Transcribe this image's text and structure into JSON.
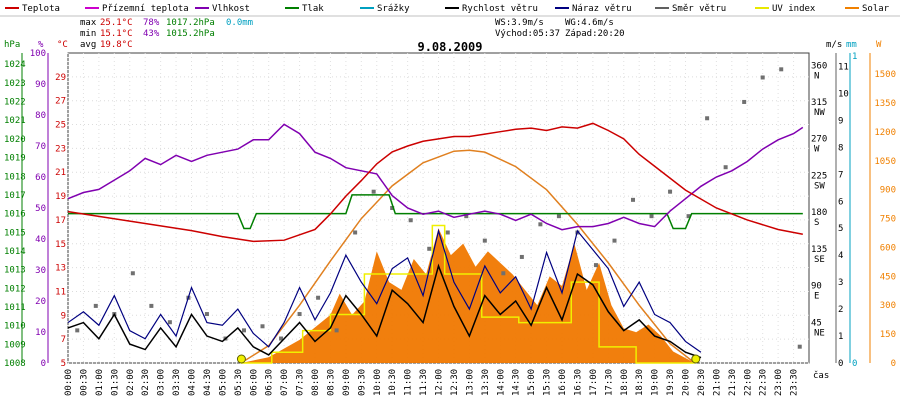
{
  "chart_data": {
    "type": "line",
    "title": "9.08.2009",
    "legend": [
      {
        "label": "Teplota",
        "color": "#cc0000"
      },
      {
        "label": "Přízemní teplota",
        "color": "#cc00cc"
      },
      {
        "label": "Vlhkost",
        "color": "#8000b0"
      },
      {
        "label": "Tlak",
        "color": "#007f00"
      },
      {
        "label": "Srážky",
        "color": "#00a0c0"
      },
      {
        "label": "Rychlost větru",
        "color": "#000000"
      },
      {
        "label": "Náraz větru",
        "color": "#000080"
      },
      {
        "label": "Směr větru",
        "color": "#606060"
      },
      {
        "label": "UV index",
        "color": "#e8e800"
      },
      {
        "label": "Solar",
        "color": "#f08000"
      }
    ],
    "stats": {
      "max": {
        "label": "max",
        "temp": "25.1°C",
        "hum": "78%",
        "press": "1017.2hPa",
        "rain": "0.0mm"
      },
      "min": {
        "label": "min",
        "temp": "15.1°C",
        "hum": "43%",
        "press": "1015.2hPa"
      },
      "avg": {
        "label": "avg",
        "temp": "19.8°C"
      }
    },
    "info": {
      "ws": "WS:3.9m/s",
      "wg": "WG:4.6m/s",
      "sunrise": "Východ:05:37",
      "sunset": "Západ:20:20"
    },
    "axis_units": {
      "hpa": "hPa",
      "pct": "%",
      "degc": "°C",
      "ms": "m/s",
      "mm": "mm",
      "w": "W",
      "xlabel": "čas"
    },
    "hpa_ticks": [
      "1024",
      "1023",
      "1022",
      "1021",
      "1020",
      "1019",
      "1018",
      "1017",
      "1016",
      "1015",
      "1014",
      "1013",
      "1012",
      "1011",
      "1010",
      "1009",
      "1008"
    ],
    "pct_ticks": [
      "100",
      "90",
      "80",
      "70",
      "60",
      "50",
      "40",
      "30",
      "20",
      "10",
      "0"
    ],
    "degc_ticks": [
      "29",
      "27",
      "25",
      "23",
      "21",
      "19",
      "17",
      "15",
      "13",
      "11",
      "9",
      "7",
      "5"
    ],
    "dir_ticks": [
      {
        "deg": "360",
        "dir": "N"
      },
      {
        "deg": "315",
        "dir": "NW"
      },
      {
        "deg": "270",
        "dir": "W"
      },
      {
        "deg": "225",
        "dir": "SW"
      },
      {
        "deg": "180",
        "dir": "S"
      },
      {
        "deg": "135",
        "dir": "SE"
      },
      {
        "deg": "90",
        "dir": "E"
      },
      {
        "deg": "45",
        "dir": "NE"
      }
    ],
    "ms_ticks": [
      "11",
      "10",
      "9",
      "8",
      "7",
      "6",
      "5",
      "4",
      "3",
      "2",
      "1",
      "0"
    ],
    "mm_ticks": [
      "1",
      "0"
    ],
    "w_ticks": [
      "1500",
      "1350",
      "1200",
      "1050",
      "900",
      "750",
      "600",
      "450",
      "300",
      "150",
      "0"
    ],
    "x_ticks": [
      "00:00",
      "00:30",
      "01:00",
      "01:30",
      "02:00",
      "02:30",
      "03:00",
      "03:30",
      "04:00",
      "04:30",
      "05:00",
      "05:30",
      "06:00",
      "06:30",
      "07:00",
      "07:30",
      "08:00",
      "08:30",
      "09:00",
      "09:30",
      "10:00",
      "10:30",
      "11:00",
      "11:30",
      "12:00",
      "12:30",
      "13:00",
      "13:30",
      "14:00",
      "14:30",
      "15:00",
      "15:30",
      "16:00",
      "16:30",
      "17:00",
      "17:30",
      "18:00",
      "18:30",
      "19:00",
      "19:30",
      "20:00",
      "20:30",
      "21:00",
      "21:30",
      "22:00",
      "22:30",
      "23:00",
      "23:30"
    ],
    "series": [
      {
        "name": "Teplota",
        "unit": "°C",
        "ylim": [
          5,
          31
        ],
        "x": [
          0,
          1,
          2,
          3,
          4,
          5,
          6,
          7,
          8,
          8.5,
          9,
          9.5,
          10,
          10.5,
          11,
          11.5,
          12,
          12.5,
          13,
          13.5,
          14,
          14.5,
          15,
          15.5,
          16,
          16.5,
          17,
          17.5,
          18,
          18.5,
          19,
          20,
          21,
          22,
          23,
          23.8
        ],
        "values": [
          17.7,
          17.3,
          16.9,
          16.5,
          16.1,
          15.6,
          15.2,
          15.3,
          16.2,
          17.5,
          19.0,
          20.3,
          21.7,
          22.7,
          23.2,
          23.6,
          23.8,
          24.0,
          24.0,
          24.2,
          24.4,
          24.6,
          24.7,
          24.5,
          24.8,
          24.7,
          25.1,
          24.5,
          23.8,
          22.5,
          21.5,
          19.5,
          18.0,
          17.0,
          16.2,
          15.8
        ]
      },
      {
        "name": "Vlhkost",
        "unit": "%",
        "ylim": [
          0,
          100
        ],
        "x": [
          0,
          0.5,
          1,
          1.5,
          2,
          2.5,
          3,
          3.5,
          4,
          4.5,
          5,
          5.5,
          6,
          6.5,
          7,
          7.5,
          8,
          8.5,
          9,
          9.5,
          10,
          10.5,
          11,
          11.5,
          12,
          12.5,
          13,
          13.5,
          14,
          14.5,
          15,
          15.5,
          16,
          16.5,
          17,
          17.5,
          18,
          18.5,
          19,
          19.5,
          20,
          20.5,
          21,
          21.5,
          22,
          22.5,
          23,
          23.5,
          23.8
        ],
        "values": [
          53,
          55,
          56,
          59,
          62,
          66,
          64,
          67,
          65,
          67,
          68,
          69,
          72,
          72,
          77,
          74,
          68,
          66,
          63,
          62,
          61,
          54,
          50,
          48,
          49,
          47,
          48,
          49,
          48,
          46,
          48,
          45,
          43,
          44,
          44,
          45,
          47,
          45,
          44,
          49,
          53,
          57,
          60,
          62,
          65,
          69,
          72,
          74,
          76
        ]
      },
      {
        "name": "Tlak",
        "unit": "hPa",
        "ylim": [
          1008,
          1024.6
        ],
        "x": [
          0,
          5.5,
          5.7,
          5.9,
          6.1,
          9,
          9.2,
          10.4,
          10.6,
          19.4,
          19.6,
          20.0,
          20.2,
          23.8
        ],
        "values": [
          1016,
          1016,
          1015.2,
          1015.2,
          1016,
          1016,
          1017,
          1017,
          1016,
          1016,
          1015.2,
          1015.2,
          1016,
          1016
        ]
      },
      {
        "name": "Rychlost větru",
        "unit": "m/s",
        "ylim": [
          0,
          11.5
        ],
        "x": [
          0,
          0.5,
          1,
          1.5,
          2,
          2.5,
          3,
          3.5,
          4,
          4.5,
          5,
          5.5,
          6,
          6.5,
          7,
          7.5,
          8,
          8.5,
          9,
          9.5,
          10,
          10.5,
          11,
          11.5,
          12,
          12.5,
          13,
          13.5,
          14,
          14.5,
          15,
          15.5,
          16,
          16.5,
          17,
          17.5,
          18,
          18.5,
          19,
          19.5,
          20,
          20.5
        ],
        "values": [
          1.3,
          1.5,
          0.9,
          1.8,
          0.7,
          0.5,
          1.3,
          0.6,
          1.8,
          1.0,
          0.8,
          1.3,
          0.6,
          0.3,
          0.9,
          1.5,
          0.8,
          1.3,
          2.5,
          1.8,
          1.0,
          2.7,
          2.2,
          1.5,
          3.6,
          2.1,
          1.0,
          2.5,
          1.8,
          2.3,
          1.4,
          2.8,
          1.6,
          3.3,
          2.9,
          1.9,
          1.2,
          1.6,
          1.0,
          0.8,
          0.4,
          0.2
        ]
      },
      {
        "name": "Náraz větru",
        "unit": "m/s",
        "ylim": [
          0,
          11.5
        ],
        "x": [
          0,
          0.5,
          1,
          1.5,
          2,
          2.5,
          3,
          3.5,
          4,
          4.5,
          5,
          5.5,
          6,
          6.5,
          7,
          7.5,
          8,
          8.5,
          9,
          9.5,
          10,
          10.5,
          11,
          11.5,
          12,
          12.5,
          13,
          13.5,
          14,
          14.5,
          15,
          15.5,
          16,
          16.5,
          17,
          17.5,
          18,
          18.5,
          19,
          19.5,
          20,
          20.5
        ],
        "values": [
          1.5,
          1.9,
          1.4,
          2.5,
          1.2,
          0.9,
          1.8,
          1.0,
          2.8,
          1.5,
          1.4,
          2.0,
          1.1,
          0.6,
          1.5,
          2.8,
          1.6,
          2.6,
          4.0,
          3.0,
          2.2,
          3.5,
          3.9,
          2.5,
          4.9,
          3.0,
          2.0,
          3.6,
          2.6,
          3.2,
          2.0,
          4.1,
          2.6,
          4.9,
          4.2,
          3.5,
          2.1,
          3.0,
          1.8,
          1.5,
          0.8,
          0.4
        ]
      },
      {
        "name": "Směr větru",
        "unit": "°",
        "ylim": [
          0,
          380
        ],
        "x": [
          0.3,
          0.9,
          1.5,
          2.1,
          2.7,
          3.3,
          3.9,
          4.5,
          5.1,
          5.7,
          6.3,
          6.9,
          7.5,
          8.1,
          8.7,
          9.3,
          9.9,
          10.5,
          11.1,
          11.7,
          12.3,
          12.9,
          13.5,
          14.1,
          14.7,
          15.3,
          15.9,
          16.5,
          17.1,
          17.7,
          18.3,
          18.9,
          19.5,
          20.1,
          20.7,
          21.3,
          21.9,
          22.5,
          23.1,
          23.7
        ],
        "values": [
          40,
          70,
          60,
          110,
          70,
          50,
          80,
          60,
          30,
          40,
          45,
          30,
          60,
          80,
          40,
          160,
          210,
          190,
          175,
          140,
          160,
          180,
          150,
          110,
          130,
          170,
          180,
          160,
          120,
          150,
          200,
          180,
          210,
          180,
          300,
          240,
          320,
          350,
          360,
          20
        ]
      },
      {
        "name": "UV index",
        "unit": "",
        "ylim": [
          0,
          11.5
        ],
        "x": [
          5.6,
          6.6,
          6.6,
          7.6,
          7.6,
          8.5,
          8.5,
          9.6,
          9.6,
          11.8,
          11.8,
          12.2,
          12.2,
          13.4,
          13.4,
          14.6,
          14.6,
          16.3,
          16.3,
          17.2,
          17.2,
          18.4,
          18.4,
          20.3
        ],
        "values": [
          0,
          0,
          0.4,
          0.4,
          1.2,
          1.2,
          1.8,
          1.8,
          3.3,
          3.3,
          5.1,
          5.1,
          3.3,
          3.3,
          1.7,
          1.7,
          1.5,
          1.5,
          3.0,
          3.0,
          0.6,
          0.6,
          0,
          0
        ]
      },
      {
        "name": "Solar",
        "unit": "W/m²",
        "ylim": [
          0,
          1610
        ],
        "x": [
          5.6,
          6.5,
          7.5,
          8.5,
          8.8,
          9.2,
          9.6,
          10.0,
          10.4,
          10.8,
          11.2,
          11.6,
          12.0,
          12.4,
          12.8,
          13.2,
          13.6,
          14.0,
          14.4,
          14.8,
          15.2,
          15.6,
          16.0,
          16.4,
          16.8,
          17.2,
          17.6,
          18.0,
          18.4,
          18.8,
          19.2,
          19.6,
          20.3
        ],
        "values": [
          0,
          30,
          120,
          250,
          360,
          250,
          320,
          580,
          420,
          380,
          540,
          460,
          700,
          560,
          620,
          500,
          580,
          520,
          460,
          380,
          300,
          450,
          400,
          620,
          380,
          520,
          300,
          180,
          160,
          200,
          140,
          60,
          0
        ]
      },
      {
        "name": "Solar teoreticky",
        "unit": "W/m²",
        "ylim": [
          0,
          1610
        ],
        "x": [
          5.6,
          6.5,
          7.5,
          8.5,
          9.5,
          10.5,
          11.5,
          12.5,
          13.0,
          13.5,
          14.5,
          15.5,
          16.5,
          17.5,
          18.5,
          19.5,
          20.3
        ],
        "values": [
          0,
          90,
          300,
          530,
          750,
          920,
          1040,
          1100,
          1105,
          1095,
          1020,
          900,
          720,
          520,
          300,
          100,
          0
        ]
      }
    ]
  }
}
